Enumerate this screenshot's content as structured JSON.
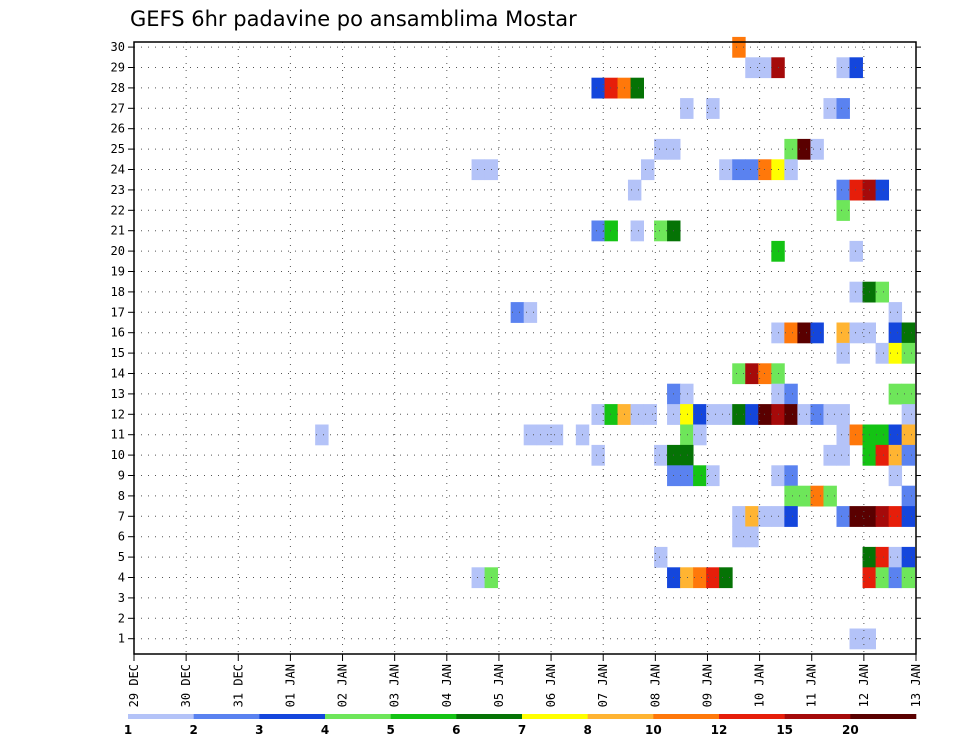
{
  "chart_data": {
    "type": "heatmap",
    "title": "GEFS 6hr padavine po ansamblima Mostar",
    "x_tick_labels": [
      "29 DEC",
      "30 DEC",
      "31 DEC",
      "01 JAN",
      "02 JAN",
      "03 JAN",
      "04 JAN",
      "05 JAN",
      "06 JAN",
      "07 JAN",
      "08 JAN",
      "09 JAN",
      "10 JAN",
      "11 JAN",
      "12 JAN",
      "13 JAN"
    ],
    "y_tick_labels": [
      "1",
      "2",
      "3",
      "4",
      "5",
      "6",
      "7",
      "8",
      "9",
      "10",
      "11",
      "12",
      "13",
      "14",
      "15",
      "16",
      "17",
      "18",
      "19",
      "20",
      "21",
      "22",
      "23",
      "24",
      "25",
      "26",
      "27",
      "28",
      "29",
      "30"
    ],
    "x_range_days": [
      0,
      15
    ],
    "y_range": [
      0.25,
      30.25
    ],
    "grid": "dotted",
    "steps_per_day": 4,
    "legend": {
      "placement": "bottom",
      "labels": [
        "1",
        "2",
        "3",
        "4",
        "5",
        "6",
        "7",
        "8",
        "10",
        "12",
        "15",
        "20"
      ],
      "colors": [
        "#b4c3f8",
        "#5a82f0",
        "#1446dc",
        "#6ee65a",
        "#14c314",
        "#057305",
        "#ffff00",
        "#ffb432",
        "#ff780a",
        "#e61e0a",
        "#a50a0a",
        "#5a0000"
      ]
    },
    "cells": [
      [
        30,
        11.6,
        9
      ],
      [
        29,
        11.85,
        1
      ],
      [
        29,
        12.1,
        1
      ],
      [
        29,
        12.35,
        11
      ],
      [
        29,
        13.6,
        1
      ],
      [
        29,
        13.85,
        3
      ],
      [
        28,
        8.9,
        3
      ],
      [
        28,
        9.15,
        10
      ],
      [
        28,
        9.4,
        9
      ],
      [
        28,
        9.65,
        6
      ],
      [
        27,
        10.6,
        1
      ],
      [
        27,
        11.1,
        1
      ],
      [
        27,
        13.35,
        1
      ],
      [
        27,
        13.6,
        2
      ],
      [
        25,
        10.1,
        1
      ],
      [
        25,
        10.35,
        1
      ],
      [
        25,
        12.6,
        4
      ],
      [
        25,
        12.85,
        12
      ],
      [
        25,
        13.1,
        1
      ],
      [
        24,
        6.6,
        1
      ],
      [
        24,
        6.85,
        1
      ],
      [
        24,
        9.85,
        1
      ],
      [
        24,
        11.35,
        1
      ],
      [
        24,
        11.6,
        2
      ],
      [
        24,
        11.85,
        2
      ],
      [
        24,
        12.1,
        9
      ],
      [
        24,
        12.35,
        7
      ],
      [
        24,
        12.6,
        1
      ],
      [
        23,
        9.6,
        1
      ],
      [
        23,
        13.6,
        2
      ],
      [
        23,
        13.85,
        10
      ],
      [
        23,
        14.1,
        11
      ],
      [
        23,
        14.35,
        3
      ],
      [
        22,
        13.6,
        4
      ],
      [
        21,
        8.9,
        2
      ],
      [
        21,
        9.15,
        5
      ],
      [
        21,
        9.65,
        1
      ],
      [
        21,
        10.1,
        4
      ],
      [
        21,
        10.35,
        6
      ],
      [
        20,
        12.35,
        5
      ],
      [
        20,
        13.85,
        1
      ],
      [
        18,
        13.85,
        1
      ],
      [
        18,
        14.1,
        6
      ],
      [
        18,
        14.35,
        4
      ],
      [
        17,
        7.35,
        2
      ],
      [
        17,
        7.6,
        1
      ],
      [
        17,
        14.6,
        1
      ],
      [
        16,
        12.35,
        1
      ],
      [
        16,
        12.6,
        9
      ],
      [
        16,
        12.85,
        12
      ],
      [
        16,
        13.1,
        3
      ],
      [
        16,
        13.6,
        8
      ],
      [
        16,
        13.85,
        1
      ],
      [
        16,
        14.1,
        1
      ],
      [
        16,
        14.6,
        3
      ],
      [
        16,
        14.85,
        6
      ],
      [
        15,
        13.6,
        1
      ],
      [
        15,
        14.35,
        1
      ],
      [
        15,
        14.6,
        7
      ],
      [
        15,
        14.85,
        4
      ],
      [
        14,
        11.6,
        4
      ],
      [
        14,
        11.85,
        11
      ],
      [
        14,
        12.1,
        9
      ],
      [
        14,
        12.35,
        4
      ],
      [
        13,
        10.35,
        2
      ],
      [
        13,
        10.6,
        1
      ],
      [
        13,
        12.35,
        1
      ],
      [
        13,
        12.6,
        2
      ],
      [
        13,
        14.6,
        4
      ],
      [
        13,
        14.85,
        4
      ],
      [
        12,
        8.9,
        1
      ],
      [
        12,
        9.15,
        5
      ],
      [
        12,
        9.4,
        8
      ],
      [
        12,
        9.65,
        1
      ],
      [
        12,
        9.9,
        1
      ],
      [
        12,
        10.35,
        1
      ],
      [
        12,
        10.6,
        7
      ],
      [
        12,
        10.85,
        3
      ],
      [
        12,
        11.1,
        1
      ],
      [
        12,
        11.35,
        1
      ],
      [
        12,
        11.6,
        6
      ],
      [
        12,
        11.85,
        3
      ],
      [
        12,
        12.1,
        12
      ],
      [
        12,
        12.35,
        11
      ],
      [
        12,
        12.6,
        12
      ],
      [
        12,
        12.85,
        1
      ],
      [
        12,
        13.1,
        2
      ],
      [
        12,
        13.35,
        1
      ],
      [
        12,
        13.6,
        1
      ],
      [
        12,
        14.85,
        1
      ],
      [
        11,
        3.6,
        1
      ],
      [
        11,
        7.6,
        1
      ],
      [
        11,
        7.85,
        1
      ],
      [
        11,
        8.1,
        1
      ],
      [
        11,
        8.6,
        1
      ],
      [
        11,
        10.6,
        4
      ],
      [
        11,
        10.85,
        1
      ],
      [
        11,
        13.6,
        1
      ],
      [
        11,
        13.85,
        9
      ],
      [
        11,
        14.1,
        5
      ],
      [
        11,
        14.35,
        5
      ],
      [
        11,
        14.6,
        3
      ],
      [
        11,
        14.85,
        8
      ],
      [
        10,
        8.9,
        1
      ],
      [
        10,
        10.1,
        1
      ],
      [
        10,
        10.35,
        6
      ],
      [
        10,
        10.6,
        6
      ],
      [
        10,
        13.35,
        1
      ],
      [
        10,
        13.6,
        1
      ],
      [
        10,
        14.1,
        5
      ],
      [
        10,
        14.35,
        10
      ],
      [
        10,
        14.6,
        8
      ],
      [
        10,
        14.85,
        2
      ],
      [
        9,
        10.35,
        2
      ],
      [
        9,
        10.6,
        2
      ],
      [
        9,
        10.85,
        5
      ],
      [
        9,
        11.1,
        1
      ],
      [
        9,
        12.35,
        1
      ],
      [
        9,
        12.6,
        2
      ],
      [
        9,
        14.6,
        1
      ],
      [
        8,
        12.6,
        4
      ],
      [
        8,
        12.85,
        4
      ],
      [
        8,
        13.1,
        9
      ],
      [
        8,
        13.35,
        4
      ],
      [
        8,
        14.85,
        2
      ],
      [
        7,
        11.6,
        1
      ],
      [
        7,
        11.85,
        8
      ],
      [
        7,
        12.1,
        1
      ],
      [
        7,
        12.35,
        1
      ],
      [
        7,
        12.6,
        3
      ],
      [
        7,
        13.6,
        2
      ],
      [
        7,
        13.85,
        12
      ],
      [
        7,
        14.1,
        12
      ],
      [
        7,
        14.35,
        11
      ],
      [
        7,
        14.6,
        10
      ],
      [
        7,
        14.85,
        3
      ],
      [
        6,
        11.6,
        1
      ],
      [
        6,
        11.85,
        1
      ],
      [
        5,
        10.1,
        1
      ],
      [
        5,
        14.1,
        6
      ],
      [
        5,
        14.35,
        10
      ],
      [
        5,
        14.6,
        1
      ],
      [
        5,
        14.85,
        3
      ],
      [
        4,
        6.6,
        1
      ],
      [
        4,
        6.85,
        4
      ],
      [
        4,
        10.35,
        3
      ],
      [
        4,
        10.6,
        8
      ],
      [
        4,
        10.85,
        9
      ],
      [
        4,
        11.1,
        10
      ],
      [
        4,
        11.35,
        6
      ],
      [
        4,
        14.1,
        10
      ],
      [
        4,
        14.35,
        4
      ],
      [
        4,
        14.6,
        2
      ],
      [
        4,
        14.85,
        4
      ],
      [
        1,
        13.85,
        1
      ],
      [
        1,
        14.1,
        1
      ]
    ]
  }
}
